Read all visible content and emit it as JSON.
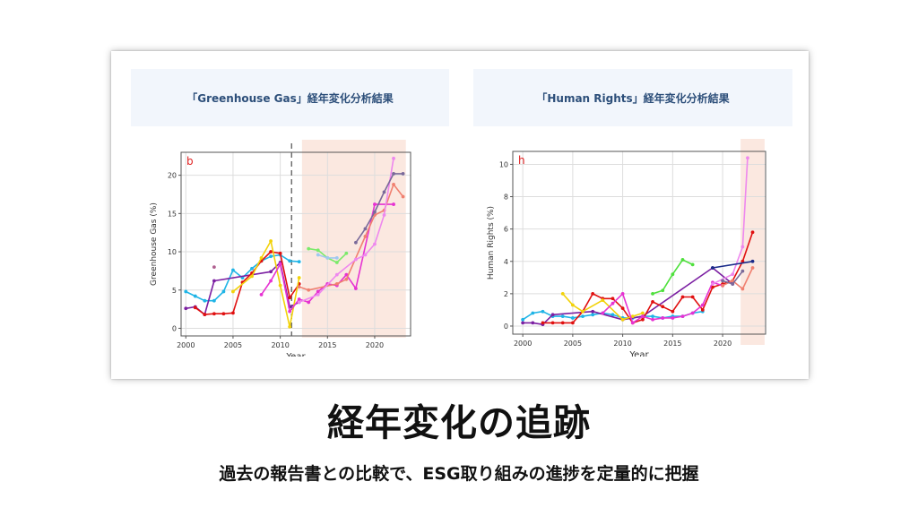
{
  "panels": {
    "left_title": "「Greenhouse Gas」経年変化分析結果",
    "right_title": "「Human Rights」経年変化分析結果"
  },
  "chart_data": [
    {
      "type": "line",
      "panel_letter": "b",
      "xlabel": "Year",
      "ylabel": "Greenhouse Gas (%)",
      "xlim": [
        1999.5,
        2023.8
      ],
      "ylim": [
        -1,
        23
      ],
      "xticks": [
        2000,
        2005,
        2010,
        2015,
        2020
      ],
      "yticks": [
        0,
        5,
        10,
        15,
        20
      ],
      "grid": true,
      "dashed_vline_x": 2011.2,
      "shaded_region": [
        2012.3,
        2023.3
      ],
      "series": [
        {
          "color": "#1fb4e6",
          "points": [
            [
              2000,
              4.8
            ],
            [
              2001,
              4.2
            ],
            [
              2002,
              3.6
            ],
            [
              2003,
              3.6
            ],
            [
              2004,
              4.8
            ],
            [
              2005,
              7.6
            ],
            [
              2006,
              6.6
            ],
            [
              2007,
              7.8
            ],
            [
              2008,
              8.8
            ],
            [
              2009,
              9.4
            ],
            [
              2010,
              9.6
            ],
            [
              2011,
              8.8
            ],
            [
              2012,
              8.7
            ]
          ]
        },
        {
          "color": "#7b1fa2",
          "points": [
            [
              2000,
              2.6
            ],
            [
              2001,
              2.8
            ],
            [
              2002,
              1.8
            ],
            [
              2003,
              6.2
            ],
            [
              2009,
              7.4
            ],
            [
              2010,
              8.6
            ],
            [
              2011,
              2.8
            ],
            [
              2012,
              3.4
            ]
          ]
        },
        {
          "color": "#e01010",
          "points": [
            [
              2001,
              2.7
            ],
            [
              2002,
              1.8
            ],
            [
              2003,
              1.9
            ],
            [
              2004,
              1.9
            ],
            [
              2005,
              2.0
            ],
            [
              2006,
              6.0
            ],
            [
              2007,
              7.2
            ],
            [
              2008,
              8.8
            ],
            [
              2009,
              10.0
            ],
            [
              2010,
              9.8
            ],
            [
              2011,
              4.0
            ],
            [
              2012,
              5.8
            ]
          ]
        },
        {
          "color": "#f2d20a",
          "points": [
            [
              2005,
              4.8
            ],
            [
              2007,
              6.8
            ],
            [
              2008,
              9.2
            ],
            [
              2009,
              11.4
            ],
            [
              2010,
              5.6
            ],
            [
              2011,
              0.2
            ],
            [
              2012,
              6.6
            ]
          ]
        },
        {
          "color": "#e632d2",
          "points": [
            [
              2008,
              4.4
            ],
            [
              2009,
              6.2
            ],
            [
              2010,
              8.4
            ],
            [
              2011,
              2.2
            ],
            [
              2012,
              3.8
            ],
            [
              2013,
              3.4
            ],
            [
              2014,
              4.8
            ],
            [
              2015,
              5.8
            ],
            [
              2016,
              5.6
            ],
            [
              2017,
              7.0
            ],
            [
              2018,
              5.2
            ],
            [
              2020,
              16.2
            ],
            [
              2022,
              16.2
            ]
          ]
        },
        {
          "color": "#f08070",
          "points": [
            [
              2012,
              5.4
            ],
            [
              2013,
              5.0
            ],
            [
              2016,
              5.8
            ],
            [
              2017,
              6.4
            ],
            [
              2019,
              12.0
            ],
            [
              2020,
              14.8
            ],
            [
              2021,
              15.4
            ],
            [
              2022,
              18.8
            ],
            [
              2023,
              17.2
            ]
          ]
        },
        {
          "color": "#ee88ee",
          "points": [
            [
              2012,
              3.4
            ],
            [
              2014,
              4.4
            ],
            [
              2016,
              7.0
            ],
            [
              2018,
              9.0
            ],
            [
              2019,
              9.6
            ],
            [
              2020,
              11.0
            ],
            [
              2021,
              14.8
            ],
            [
              2022,
              22.2
            ]
          ]
        },
        {
          "color": "#7bea6a",
          "points": [
            [
              2013,
              10.4
            ],
            [
              2014,
              10.2
            ],
            [
              2015,
              9.2
            ],
            [
              2016,
              8.6
            ],
            [
              2017,
              9.8
            ]
          ]
        },
        {
          "color": "#9fc8f0",
          "points": [
            [
              2014,
              9.6
            ],
            [
              2015,
              9.2
            ],
            [
              2016,
              9.2
            ]
          ]
        },
        {
          "color": "#7a6a9a",
          "points": [
            [
              2018,
              11.2
            ],
            [
              2019,
              13.0
            ],
            [
              2020,
              15.2
            ],
            [
              2021,
              17.8
            ],
            [
              2022,
              20.2
            ],
            [
              2023,
              20.2
            ]
          ]
        },
        {
          "color": "#b06090",
          "points": [
            [
              2003,
              8.0
            ]
          ]
        }
      ]
    },
    {
      "type": "line",
      "panel_letter": "h",
      "xlabel": "Year",
      "ylabel": "Human Rights (%)",
      "xlim": [
        1999,
        2024.3
      ],
      "ylim": [
        -0.5,
        10.8
      ],
      "xticks": [
        2000,
        2005,
        2010,
        2015,
        2020
      ],
      "yticks": [
        0,
        2,
        4,
        6,
        8,
        10
      ],
      "grid": true,
      "shaded_region": [
        2021.8,
        2024.2
      ],
      "series": [
        {
          "color": "#1fb4e6",
          "points": [
            [
              2000,
              0.4
            ],
            [
              2001,
              0.8
            ],
            [
              2002,
              0.9
            ],
            [
              2003,
              0.6
            ],
            [
              2004,
              0.6
            ],
            [
              2005,
              0.5
            ],
            [
              2006,
              0.6
            ],
            [
              2007,
              0.7
            ],
            [
              2008,
              0.8
            ],
            [
              2009,
              0.7
            ],
            [
              2010,
              0.5
            ],
            [
              2011,
              0.5
            ],
            [
              2012,
              0.6
            ],
            [
              2013,
              0.6
            ],
            [
              2014,
              0.5
            ],
            [
              2015,
              0.6
            ],
            [
              2016,
              0.6
            ],
            [
              2017,
              0.8
            ],
            [
              2018,
              0.9
            ]
          ]
        },
        {
          "color": "#7b1fa2",
          "points": [
            [
              2000,
              0.2
            ],
            [
              2001,
              0.2
            ],
            [
              2002,
              0.1
            ],
            [
              2003,
              0.7
            ],
            [
              2007,
              0.9
            ],
            [
              2010,
              0.4
            ],
            [
              2012,
              0.6
            ],
            [
              2019,
              3.6
            ],
            [
              2021,
              2.6
            ]
          ]
        },
        {
          "color": "#e01010",
          "points": [
            [
              2002,
              0.2
            ],
            [
              2003,
              0.2
            ],
            [
              2004,
              0.2
            ],
            [
              2005,
              0.2
            ],
            [
              2006,
              0.9
            ],
            [
              2007,
              2.0
            ],
            [
              2008,
              1.7
            ],
            [
              2009,
              1.7
            ],
            [
              2010,
              1.1
            ],
            [
              2011,
              0.2
            ],
            [
              2012,
              0.4
            ],
            [
              2013,
              1.5
            ],
            [
              2014,
              1.2
            ],
            [
              2015,
              0.9
            ],
            [
              2016,
              1.8
            ],
            [
              2017,
              1.8
            ],
            [
              2018,
              1.0
            ],
            [
              2019,
              2.4
            ],
            [
              2020,
              2.6
            ],
            [
              2021,
              2.8
            ],
            [
              2022,
              4.0
            ],
            [
              2023,
              5.8
            ]
          ]
        },
        {
          "color": "#f2d20a",
          "points": [
            [
              2004,
              2.0
            ],
            [
              2005,
              1.3
            ],
            [
              2006,
              0.9
            ],
            [
              2008,
              1.6
            ],
            [
              2010,
              0.4
            ],
            [
              2011,
              0.6
            ],
            [
              2012,
              0.8
            ]
          ]
        },
        {
          "color": "#e632d2",
          "points": [
            [
              2008,
              0.8
            ],
            [
              2009,
              1.4
            ],
            [
              2010,
              2.0
            ],
            [
              2011,
              0.2
            ],
            [
              2012,
              0.6
            ],
            [
              2013,
              0.4
            ],
            [
              2014,
              0.5
            ],
            [
              2015,
              0.5
            ],
            [
              2016,
              0.6
            ],
            [
              2017,
              0.8
            ],
            [
              2018,
              1.3
            ],
            [
              2019,
              2.7
            ],
            [
              2020,
              2.5
            ]
          ]
        },
        {
          "color": "#f08070",
          "points": [
            [
              2020,
              2.5
            ],
            [
              2021,
              2.8
            ],
            [
              2022,
              2.3
            ],
            [
              2023,
              3.6
            ]
          ]
        },
        {
          "color": "#ee88ee",
          "points": [
            [
              2019,
              2.6
            ],
            [
              2021,
              3.2
            ],
            [
              2022,
              4.9
            ],
            [
              2022.5,
              10.4
            ]
          ]
        },
        {
          "color": "#4ee03c",
          "points": [
            [
              2013,
              2.0
            ],
            [
              2014,
              2.2
            ],
            [
              2015,
              3.2
            ],
            [
              2016,
              4.1
            ],
            [
              2017,
              3.8
            ]
          ]
        },
        {
          "color": "#7a6a9a",
          "points": [
            [
              2020,
              2.8
            ],
            [
              2021,
              2.6
            ],
            [
              2022,
              3.4
            ]
          ]
        },
        {
          "color": "#1a2b8a",
          "points": [
            [
              2019,
              3.6
            ],
            [
              2023,
              4.0
            ]
          ]
        }
      ]
    }
  ],
  "title": "経年変化の追跡",
  "subtitle": "過去の報告書との比較で、ESG取り組みの進捗を定量的に把握"
}
